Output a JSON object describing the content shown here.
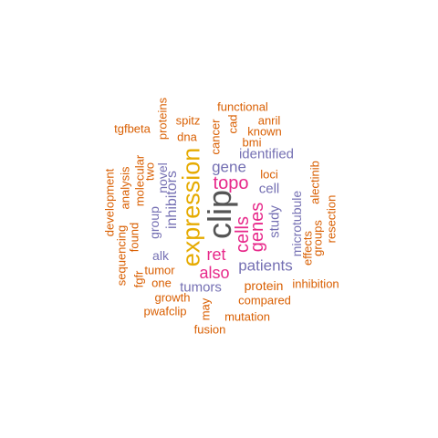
{
  "colors": {
    "gray": "#555555",
    "orange": "#d95f02",
    "gold": "#e6ab02",
    "purple": "#7570b3",
    "magenta": "#e7298a"
  },
  "words": [
    {
      "text": "clip",
      "color": "gray"
    },
    {
      "text": "expression",
      "color": "gold"
    },
    {
      "text": "topo",
      "color": "magenta"
    },
    {
      "text": "cells",
      "color": "magenta"
    },
    {
      "text": "genes",
      "color": "magenta"
    },
    {
      "text": "ret",
      "color": "magenta"
    },
    {
      "text": "also",
      "color": "magenta"
    },
    {
      "text": "gene",
      "color": "purple"
    },
    {
      "text": "patients",
      "color": "purple"
    },
    {
      "text": "inhibitors",
      "color": "purple"
    },
    {
      "text": "tumors",
      "color": "purple"
    },
    {
      "text": "identified",
      "color": "purple"
    },
    {
      "text": "cell",
      "color": "purple"
    },
    {
      "text": "study",
      "color": "purple"
    },
    {
      "text": "novel",
      "color": "purple"
    },
    {
      "text": "group",
      "color": "purple"
    },
    {
      "text": "alk",
      "color": "purple"
    },
    {
      "text": "microtubule",
      "color": "purple"
    },
    {
      "text": "protein",
      "color": "orange"
    },
    {
      "text": "functional",
      "color": "orange"
    },
    {
      "text": "proteins",
      "color": "orange"
    },
    {
      "text": "tgfbeta",
      "color": "orange"
    },
    {
      "text": "spitz",
      "color": "orange"
    },
    {
      "text": "dna",
      "color": "orange"
    },
    {
      "text": "cancer",
      "color": "orange"
    },
    {
      "text": "cad",
      "color": "orange"
    },
    {
      "text": "anril",
      "color": "orange"
    },
    {
      "text": "known",
      "color": "orange"
    },
    {
      "text": "bmi",
      "color": "orange"
    },
    {
      "text": "loci",
      "color": "orange"
    },
    {
      "text": "two",
      "color": "orange"
    },
    {
      "text": "molecular",
      "color": "orange"
    },
    {
      "text": "analysis",
      "color": "orange"
    },
    {
      "text": "development",
      "color": "orange"
    },
    {
      "text": "sequencing",
      "color": "orange"
    },
    {
      "text": "found",
      "color": "orange"
    },
    {
      "text": "tumor",
      "color": "orange"
    },
    {
      "text": "fgfr",
      "color": "orange"
    },
    {
      "text": "one",
      "color": "orange"
    },
    {
      "text": "growth",
      "color": "orange"
    },
    {
      "text": "pwafclip",
      "color": "orange"
    },
    {
      "text": "may",
      "color": "orange"
    },
    {
      "text": "fusion",
      "color": "orange"
    },
    {
      "text": "mutation",
      "color": "orange"
    },
    {
      "text": "compared",
      "color": "orange"
    },
    {
      "text": "inhibition",
      "color": "orange"
    },
    {
      "text": "effects",
      "color": "orange"
    },
    {
      "text": "groups",
      "color": "orange"
    },
    {
      "text": "alectinib",
      "color": "orange"
    },
    {
      "text": "resection",
      "color": "orange"
    }
  ]
}
